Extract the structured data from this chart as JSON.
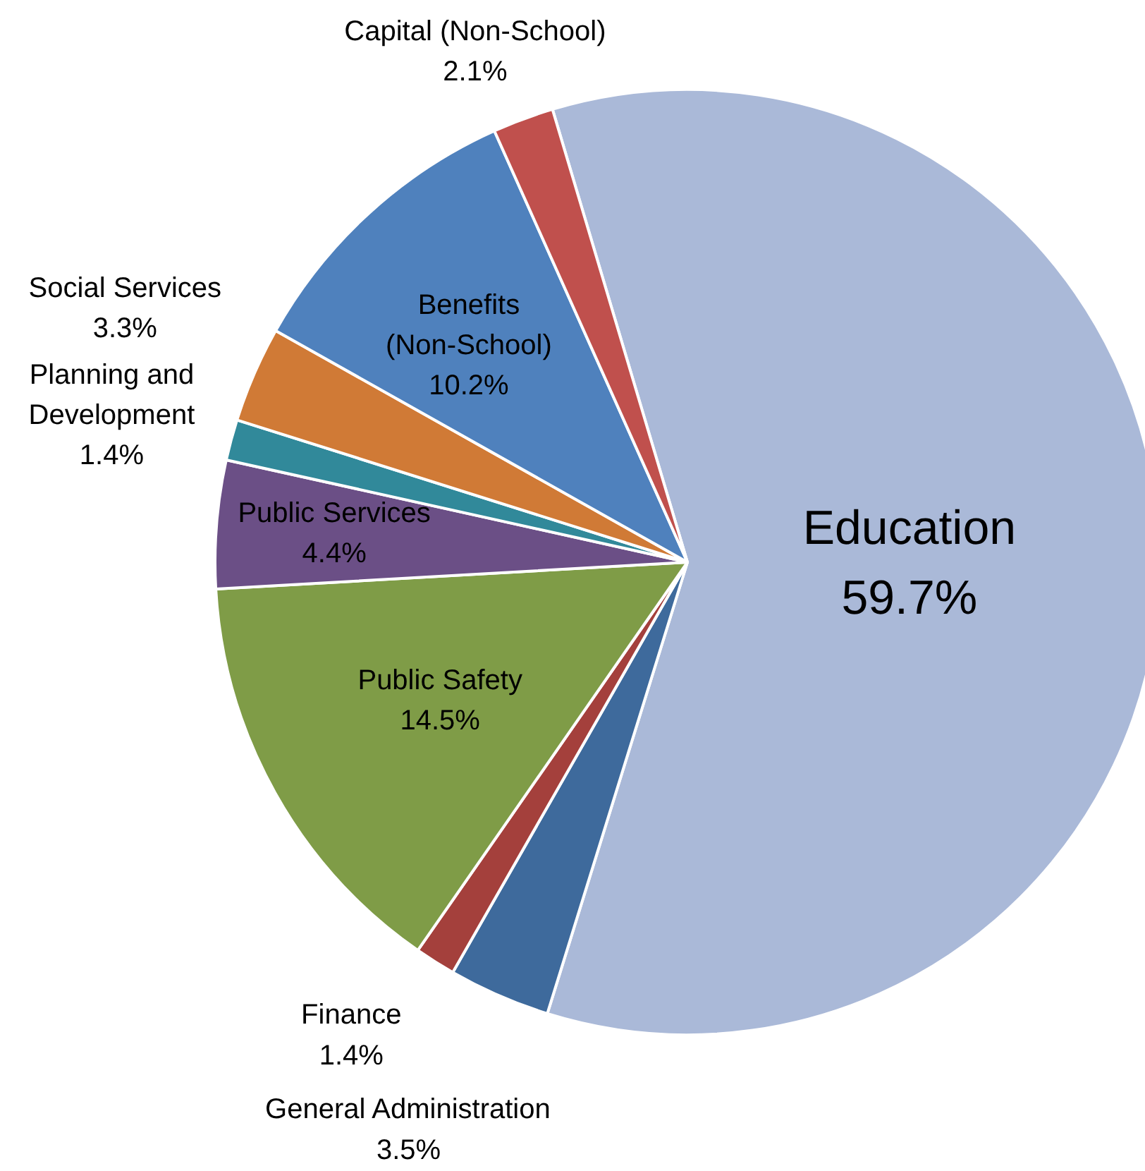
{
  "chart_data": {
    "type": "pie",
    "categories": [
      "Education",
      "General Administration",
      "Finance",
      "Public Safety",
      "Public Services",
      "Planning and Development",
      "Social Services",
      "Benefits (Non-School)",
      "Capital (Non-School)"
    ],
    "values": [
      59.7,
      3.5,
      1.4,
      14.5,
      4.4,
      1.4,
      3.3,
      10.2,
      2.1
    ],
    "value_labels": [
      "59.7%",
      "3.5%",
      "1.4%",
      "14.5%",
      "4.4%",
      "1.4%",
      "3.3%",
      "10.2%",
      "2.1%"
    ],
    "colors": [
      "#aab9d8",
      "#3e6a9c",
      "#a4403c",
      "#7f9c47",
      "#6b4f86",
      "#31899a",
      "#d07a36",
      "#4f81bd",
      "#c0504d"
    ]
  }
}
